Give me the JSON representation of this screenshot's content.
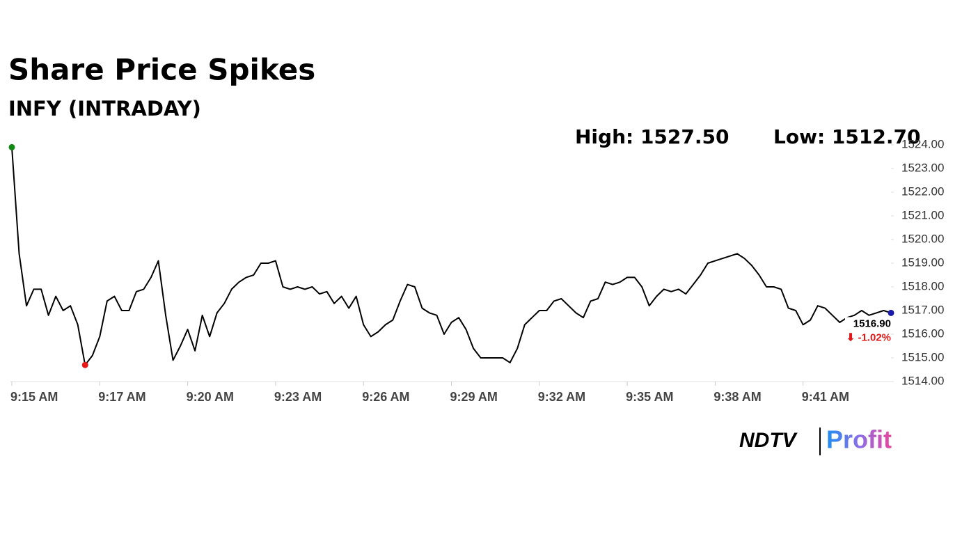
{
  "chart_data": {
    "type": "line",
    "title": "Share Price Spikes",
    "subtitle": "INFY (INTRADAY)",
    "high_label": "High: 1527.50",
    "low_label": "Low: 1512.70",
    "last_label": "1516.90",
    "change_label": "⬇ -1.02%",
    "brand": "NDTV",
    "brand_sub": "Profit",
    "color": "#000000",
    "start_color": "#108a10",
    "low_color": "#e81818",
    "end_color": "#1a1aa8",
    "change_color": "#e01818",
    "grid": false,
    "categories": [
      "9:15 AM",
      null,
      null,
      null,
      null,
      null,
      null,
      null,
      null,
      null,
      null,
      null,
      "9:17 AM",
      null,
      null,
      null,
      null,
      null,
      null,
      null,
      null,
      null,
      null,
      null,
      "9:20 AM",
      null,
      null,
      null,
      null,
      null,
      null,
      null,
      null,
      null,
      null,
      null,
      "9:23 AM",
      null,
      null,
      null,
      null,
      null,
      null,
      null,
      null,
      null,
      null,
      null,
      "9:26 AM",
      null,
      null,
      null,
      null,
      null,
      null,
      null,
      null,
      null,
      null,
      null,
      "9:29 AM",
      null,
      null,
      null,
      null,
      null,
      null,
      null,
      null,
      null,
      null,
      null,
      "9:32 AM",
      null,
      null,
      null,
      null,
      null,
      null,
      null,
      null,
      null,
      null,
      null,
      "9:35 AM",
      null,
      null,
      null,
      null,
      null,
      null,
      null,
      null,
      null,
      null,
      null,
      "9:38 AM",
      null,
      null,
      null,
      null,
      null,
      null,
      null,
      null,
      null,
      null,
      null,
      "9:41 AM",
      null,
      null,
      null,
      null,
      null,
      null,
      null,
      null,
      null,
      null,
      null,
      null
    ],
    "values": [
      1523.9,
      1519.4,
      1517.2,
      1517.9,
      1517.9,
      1516.8,
      1517.6,
      1517.0,
      1517.2,
      1516.4,
      1514.7,
      1515.1,
      1515.9,
      1517.4,
      1517.6,
      1517.0,
      1517.0,
      1517.8,
      1517.9,
      1518.4,
      1519.1,
      1516.8,
      1514.9,
      1515.5,
      1516.2,
      1515.3,
      1516.8,
      1515.9,
      1516.9,
      1517.3,
      1517.9,
      1518.2,
      1518.4,
      1518.5,
      1519.0,
      1519.0,
      1519.1,
      1518.0,
      1517.9,
      1518.0,
      1517.9,
      1518.0,
      1517.7,
      1517.8,
      1517.3,
      1517.6,
      1517.1,
      1517.6,
      1516.4,
      1515.9,
      1516.1,
      1516.4,
      1516.6,
      1517.4,
      1518.1,
      1518.0,
      1517.1,
      1516.9,
      1516.8,
      1516.0,
      1516.5,
      1516.7,
      1516.2,
      1515.4,
      1515.0,
      1515.0,
      1515.0,
      1515.0,
      1514.8,
      1515.4,
      1516.4,
      1516.7,
      1517.0,
      1517.0,
      1517.4,
      1517.5,
      1517.2,
      1516.9,
      1516.7,
      1517.4,
      1517.5,
      1518.2,
      1518.1,
      1518.2,
      1518.4,
      1518.4,
      1518.0,
      1517.2,
      1517.6,
      1517.9,
      1517.8,
      1517.9,
      1517.7,
      1518.1,
      1518.5,
      1519.0,
      1519.1,
      1519.2,
      1519.3,
      1519.4,
      1519.2,
      1518.9,
      1518.5,
      1518.0,
      1518.0,
      1517.9,
      1517.1,
      1517.0,
      1516.4,
      1516.6,
      1517.2,
      1517.1,
      1516.8,
      1516.5,
      1516.7,
      1516.8,
      1517.0,
      1516.8,
      1516.9,
      1517.0,
      1516.9
    ],
    "ylim": [
      1514,
      1524
    ],
    "yticks": [
      {
        "value": 1514,
        "label": "1514.00"
      },
      {
        "value": 1515,
        "label": "1515.00"
      },
      {
        "value": 1516,
        "label": "1516.00"
      },
      {
        "value": 1517,
        "label": "1517.00"
      },
      {
        "value": 1518,
        "label": "1518.00"
      },
      {
        "value": 1519,
        "label": "1519.00"
      },
      {
        "value": 1520,
        "label": "1520.00"
      },
      {
        "value": 1521,
        "label": "1521.00"
      },
      {
        "value": 1522,
        "label": "1522.00"
      },
      {
        "value": 1523,
        "label": "1523.00"
      },
      {
        "value": 1524,
        "label": "1524.00"
      }
    ]
  }
}
